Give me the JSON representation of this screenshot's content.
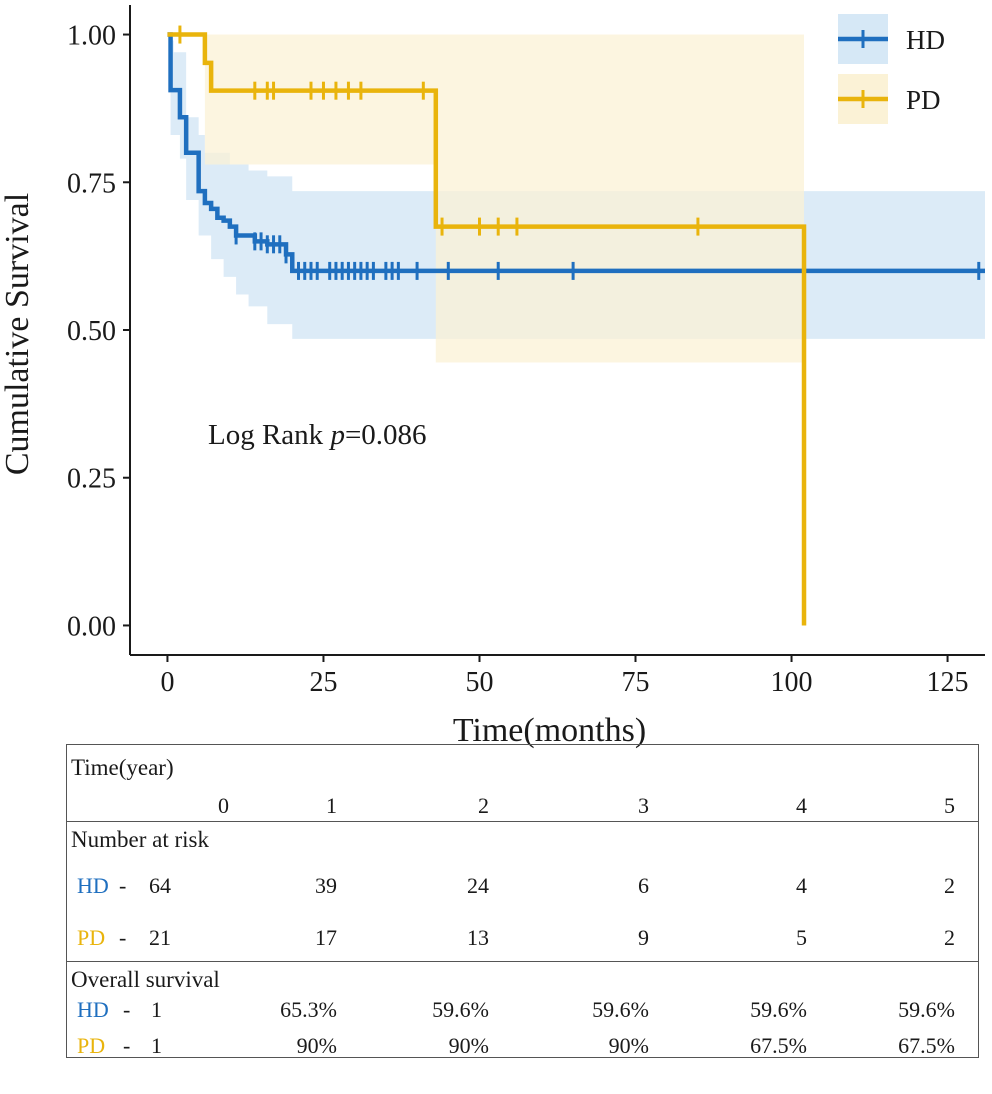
{
  "chart_data": {
    "type": "line",
    "subtype": "kaplan-meier",
    "xlabel": "Time(months)",
    "ylabel": "Cumulative Survival",
    "xlim": [
      -6,
      131
    ],
    "ylim": [
      -0.05,
      1.05
    ],
    "xticks": [
      0,
      25,
      50,
      75,
      100,
      125
    ],
    "xtick_labels": [
      "0",
      "25",
      "50",
      "75",
      "100",
      "125"
    ],
    "yticks": [
      0,
      0.25,
      0.5,
      0.75,
      1.0
    ],
    "ytick_labels": [
      "0.00",
      "0.25",
      "0.50",
      "0.75",
      "1.00"
    ],
    "annotation": {
      "prefix": "Log Rank ",
      "italic": "p",
      "suffix": "=0.086"
    },
    "legend_position": "top-right",
    "series": [
      {
        "name": "HD",
        "color": "#1f6fbf",
        "band_color": "#d6e8f6",
        "steps": [
          [
            0,
            1.0
          ],
          [
            0.5,
            0.906
          ],
          [
            1,
            0.906
          ],
          [
            2,
            0.86
          ],
          [
            3,
            0.8
          ],
          [
            4,
            0.8
          ],
          [
            5,
            0.735
          ],
          [
            6,
            0.715
          ],
          [
            7,
            0.705
          ],
          [
            8,
            0.69
          ],
          [
            9,
            0.685
          ],
          [
            10,
            0.675
          ],
          [
            11,
            0.66
          ],
          [
            13,
            0.66
          ],
          [
            14,
            0.65
          ],
          [
            16,
            0.645
          ],
          [
            19,
            0.628
          ],
          [
            20,
            0.6
          ],
          [
            131,
            0.6
          ]
        ],
        "ci_upper": [
          [
            0,
            1.0
          ],
          [
            0.5,
            0.99
          ],
          [
            1,
            0.97
          ],
          [
            3,
            0.86
          ],
          [
            5,
            0.83
          ],
          [
            6,
            0.8
          ],
          [
            10,
            0.78
          ],
          [
            13,
            0.77
          ],
          [
            16,
            0.76
          ],
          [
            20,
            0.735
          ],
          [
            131,
            0.735
          ]
        ],
        "ci_lower": [
          [
            0,
            1.0
          ],
          [
            0.5,
            0.83
          ],
          [
            2,
            0.79
          ],
          [
            3,
            0.72
          ],
          [
            5,
            0.66
          ],
          [
            7,
            0.62
          ],
          [
            9,
            0.59
          ],
          [
            11,
            0.56
          ],
          [
            13,
            0.54
          ],
          [
            16,
            0.51
          ],
          [
            20,
            0.485
          ],
          [
            131,
            0.485
          ]
        ],
        "censor_x": [
          11,
          14,
          15,
          16,
          17,
          18,
          19,
          21,
          22,
          23,
          24,
          26,
          27,
          28,
          29,
          30,
          31,
          32,
          33,
          35,
          36,
          37,
          40,
          45,
          53,
          65,
          130
        ],
        "censor_y": [
          0.66,
          0.65,
          0.65,
          0.645,
          0.645,
          0.645,
          0.628,
          0.6,
          0.6,
          0.6,
          0.6,
          0.6,
          0.6,
          0.6,
          0.6,
          0.6,
          0.6,
          0.6,
          0.6,
          0.6,
          0.6,
          0.6,
          0.6,
          0.6,
          0.6,
          0.6,
          0.6
        ]
      },
      {
        "name": "PD",
        "color": "#e9b40c",
        "band_color": "#fbf2d6",
        "steps": [
          [
            0,
            1.0
          ],
          [
            6,
            1.0
          ],
          [
            6,
            0.952
          ],
          [
            7,
            0.905
          ],
          [
            42,
            0.905
          ],
          [
            43,
            0.79
          ],
          [
            43,
            0.675
          ],
          [
            102,
            0.675
          ],
          [
            102,
            0.0
          ]
        ],
        "ci_upper": [
          [
            6,
            1.0
          ],
          [
            102,
            1.0
          ]
        ],
        "ci_lower": [
          [
            6,
            0.78
          ],
          [
            43,
            0.78
          ],
          [
            43,
            0.445
          ],
          [
            102,
            0.445
          ]
        ],
        "censor_x": [
          2,
          14,
          16,
          17,
          23,
          25,
          27,
          29,
          31,
          41,
          44,
          50,
          53,
          56,
          85
        ],
        "censor_y": [
          1.0,
          0.905,
          0.905,
          0.905,
          0.905,
          0.905,
          0.905,
          0.905,
          0.905,
          0.905,
          0.675,
          0.675,
          0.675,
          0.675,
          0.675
        ]
      }
    ]
  },
  "table": {
    "time_header": "Time(year)",
    "years": [
      "0",
      "1",
      "2",
      "3",
      "4",
      "5"
    ],
    "risk_header": "Number at risk",
    "risk_rows": [
      {
        "group": "HD",
        "color": "#1f6fbf",
        "values": [
          "64",
          "39",
          "24",
          "6",
          "4",
          "2"
        ]
      },
      {
        "group": "PD",
        "color": "#e9b40c",
        "values": [
          "21",
          "17",
          "13",
          "9",
          "5",
          "2"
        ]
      }
    ],
    "survival_header": "Overall survival",
    "survival_rows": [
      {
        "group": "HD",
        "color": "#1f6fbf",
        "values": [
          "1",
          "65.3%",
          "59.6%",
          "59.6%",
          "59.6%",
          "59.6%"
        ]
      },
      {
        "group": "PD",
        "color": "#e9b40c",
        "values": [
          "1",
          "90%",
          "90%",
          "90%",
          "67.5%",
          "67.5%"
        ]
      }
    ]
  }
}
